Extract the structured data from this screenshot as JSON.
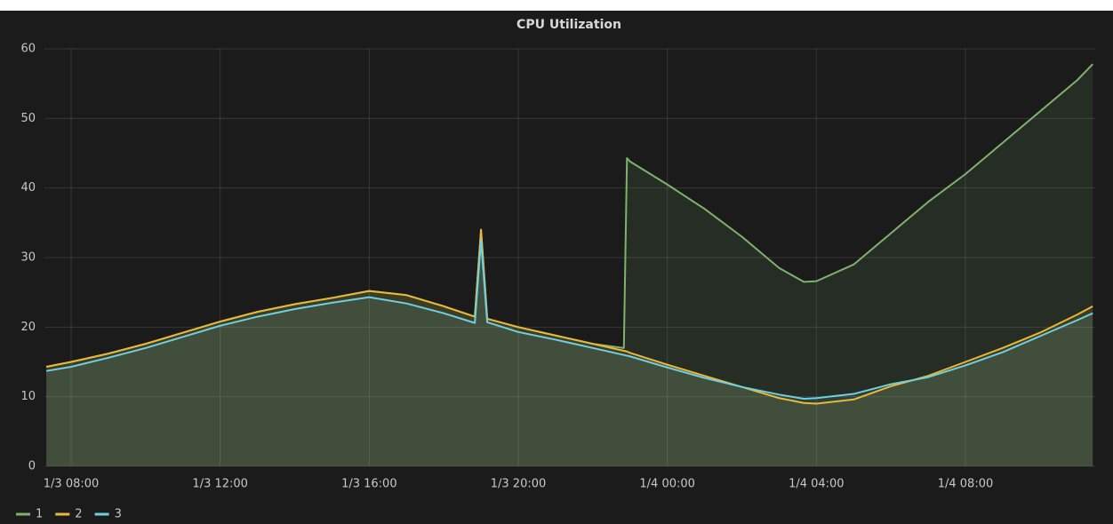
{
  "chart_data": {
    "type": "line",
    "title": "CPU Utilization",
    "x": [
      "1/3 07:20",
      "1/3 08:00",
      "1/3 09:00",
      "1/3 10:00",
      "1/3 11:00",
      "1/3 12:00",
      "1/3 13:00",
      "1/3 14:00",
      "1/3 15:00",
      "1/3 16:00",
      "1/3 17:00",
      "1/3 18:00",
      "1/3 18:50",
      "1/3 19:00",
      "1/3 19:10",
      "1/3 20:00",
      "1/3 21:00",
      "1/3 22:00",
      "1/3 22:50",
      "1/3 22:55",
      "1/3 23:00",
      "1/4 00:00",
      "1/4 01:00",
      "1/4 02:00",
      "1/4 03:00",
      "1/4 03:40",
      "1/4 04:00",
      "1/4 05:00",
      "1/4 06:00",
      "1/4 07:00",
      "1/4 08:00",
      "1/4 09:00",
      "1/4 10:00",
      "1/4 11:00",
      "1/4 11:25"
    ],
    "series": [
      {
        "name": "1",
        "color": "#7eb26d",
        "values": [
          14.3,
          15.0,
          16.2,
          17.6,
          19.2,
          20.8,
          22.2,
          23.3,
          24.2,
          25.2,
          24.6,
          23.0,
          21.5,
          34.0,
          21.2,
          20.0,
          18.8,
          17.6,
          17.0,
          44.3,
          43.8,
          40.5,
          37.0,
          33.0,
          28.5,
          26.5,
          26.6,
          29.0,
          33.5,
          38.0,
          42.0,
          46.5,
          51.0,
          55.5,
          57.8
        ]
      },
      {
        "name": "2",
        "color": "#eab839",
        "values": [
          14.3,
          15.0,
          16.2,
          17.6,
          19.2,
          20.8,
          22.2,
          23.3,
          24.2,
          25.2,
          24.6,
          23.0,
          21.5,
          34.0,
          21.2,
          20.0,
          18.8,
          17.6,
          16.6,
          16.5,
          16.3,
          14.6,
          13.0,
          11.4,
          9.8,
          9.1,
          9.0,
          9.6,
          11.5,
          13.0,
          15.0,
          17.0,
          19.2,
          21.8,
          23.0
        ]
      },
      {
        "name": "3",
        "color": "#6ed0e0",
        "values": [
          13.7,
          14.3,
          15.6,
          17.0,
          18.6,
          20.2,
          21.5,
          22.6,
          23.5,
          24.3,
          23.4,
          22.0,
          20.6,
          32.5,
          20.7,
          19.3,
          18.2,
          17.0,
          16.0,
          15.9,
          15.8,
          14.2,
          12.7,
          11.4,
          10.3,
          9.7,
          9.8,
          10.4,
          11.8,
          12.8,
          14.5,
          16.4,
          18.7,
          21.0,
          22.0
        ]
      }
    ],
    "xlim": [
      "1/3 07:17",
      "1/4 11:29"
    ],
    "xticks": [
      "1/3 08:00",
      "1/3 12:00",
      "1/3 16:00",
      "1/3 20:00",
      "1/4 00:00",
      "1/4 04:00",
      "1/4 08:00"
    ],
    "ylim": [
      0,
      60
    ],
    "yticks": [
      0,
      10,
      20,
      30,
      40,
      50,
      60
    ],
    "grid": true,
    "fill": true,
    "legend": "bottom-left"
  }
}
